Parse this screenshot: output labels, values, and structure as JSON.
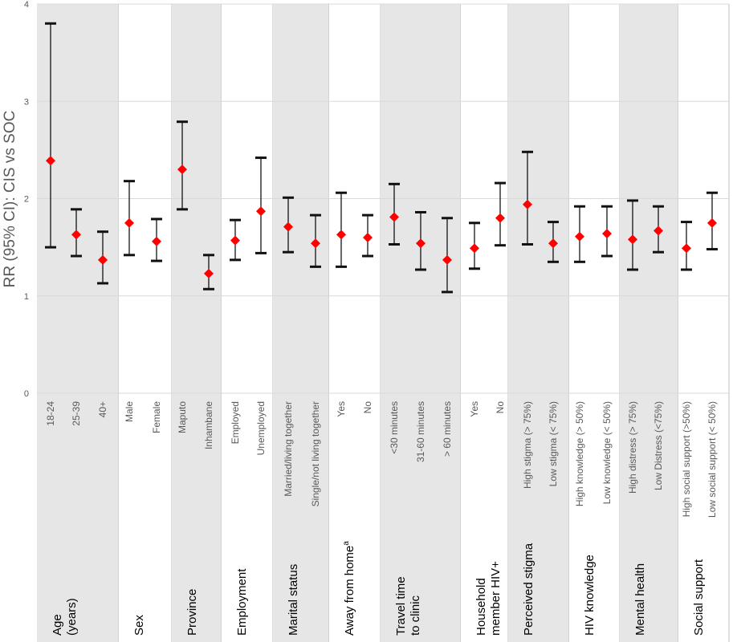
{
  "chart_data": {
    "type": "forest",
    "ylabel": "RR (95% CI): CIS vs SOC",
    "ylim": [
      0,
      4
    ],
    "yticks": [
      "0",
      "1",
      "2",
      "3",
      "4"
    ],
    "grid": true,
    "colors": {
      "point": "#ff0000",
      "band": "#e6e6e6",
      "whisker": "#000000",
      "grid": "#d9d9d9"
    },
    "groups": [
      {
        "label": [
          "Age",
          "(years)"
        ],
        "shaded": true,
        "items": [
          {
            "label": "18-24",
            "rr": 2.39,
            "lo": 1.5,
            "hi": 3.8
          },
          {
            "label": "25-39",
            "rr": 1.63,
            "lo": 1.41,
            "hi": 1.89
          },
          {
            "label": "40+",
            "rr": 1.37,
            "lo": 1.13,
            "hi": 1.66
          }
        ]
      },
      {
        "label": [
          "Sex"
        ],
        "shaded": false,
        "items": [
          {
            "label": "Male",
            "rr": 1.75,
            "lo": 1.42,
            "hi": 2.18
          },
          {
            "label": "Female",
            "rr": 1.56,
            "lo": 1.36,
            "hi": 1.79
          }
        ]
      },
      {
        "label": [
          "Province"
        ],
        "shaded": true,
        "items": [
          {
            "label": "Maputo",
            "rr": 2.3,
            "lo": 1.89,
            "hi": 2.79
          },
          {
            "label": "Inhambane",
            "rr": 1.23,
            "lo": 1.07,
            "hi": 1.42
          }
        ]
      },
      {
        "label": [
          "Employment"
        ],
        "shaded": false,
        "items": [
          {
            "label": "Employed",
            "rr": 1.57,
            "lo": 1.37,
            "hi": 1.78
          },
          {
            "label": "Unemployed",
            "rr": 1.87,
            "lo": 1.44,
            "hi": 2.42
          }
        ]
      },
      {
        "label": [
          "Marital status"
        ],
        "shaded": true,
        "items": [
          {
            "label": "Married/living together",
            "rr": 1.71,
            "lo": 1.45,
            "hi": 2.01
          },
          {
            "label": "Single/not living together",
            "rr": 1.54,
            "lo": 1.3,
            "hi": 1.83
          }
        ]
      },
      {
        "label": [
          "Away from home"
        ],
        "sup": "a",
        "shaded": false,
        "items": [
          {
            "label": "Yes",
            "rr": 1.63,
            "lo": 1.3,
            "hi": 2.06
          },
          {
            "label": "No",
            "rr": 1.6,
            "lo": 1.41,
            "hi": 1.83
          }
        ]
      },
      {
        "label": [
          "Travel time",
          "to clinic"
        ],
        "shaded": true,
        "items": [
          {
            "label": "<30 minutes",
            "rr": 1.81,
            "lo": 1.53,
            "hi": 2.15
          },
          {
            "label": "31-60 minutes",
            "rr": 1.54,
            "lo": 1.27,
            "hi": 1.86
          },
          {
            "label": "> 60 minutes",
            "rr": 1.37,
            "lo": 1.04,
            "hi": 1.8
          }
        ]
      },
      {
        "label": [
          "Household",
          "member HIV+"
        ],
        "shaded": false,
        "items": [
          {
            "label": "Yes",
            "rr": 1.49,
            "lo": 1.28,
            "hi": 1.75
          },
          {
            "label": "No",
            "rr": 1.8,
            "lo": 1.52,
            "hi": 2.16
          }
        ]
      },
      {
        "label": [
          "Perceived stigma"
        ],
        "shaded": true,
        "items": [
          {
            "label": "High stigma (> 75%)",
            "rr": 1.94,
            "lo": 1.53,
            "hi": 2.48
          },
          {
            "label": "Low stigma (< 75%)",
            "rr": 1.54,
            "lo": 1.35,
            "hi": 1.76
          }
        ]
      },
      {
        "label": [
          "HIV knowledge"
        ],
        "shaded": false,
        "items": [
          {
            "label": "High knowledge (> 50%)",
            "rr": 1.61,
            "lo": 1.35,
            "hi": 1.92
          },
          {
            "label": "Low knowledge (< 50%)",
            "rr": 1.64,
            "lo": 1.41,
            "hi": 1.92
          }
        ]
      },
      {
        "label": [
          "Mental health"
        ],
        "shaded": true,
        "items": [
          {
            "label": "High distress (> 75%)",
            "rr": 1.58,
            "lo": 1.27,
            "hi": 1.98
          },
          {
            "label": "Low Distress (<75%)",
            "rr": 1.67,
            "lo": 1.45,
            "hi": 1.92
          }
        ]
      },
      {
        "label": [
          "Social support"
        ],
        "shaded": false,
        "items": [
          {
            "label": "High social support (>50%)",
            "rr": 1.49,
            "lo": 1.27,
            "hi": 1.76
          },
          {
            "label": "Low social support (< 50%)",
            "rr": 1.75,
            "lo": 1.48,
            "hi": 2.06
          }
        ]
      }
    ]
  }
}
